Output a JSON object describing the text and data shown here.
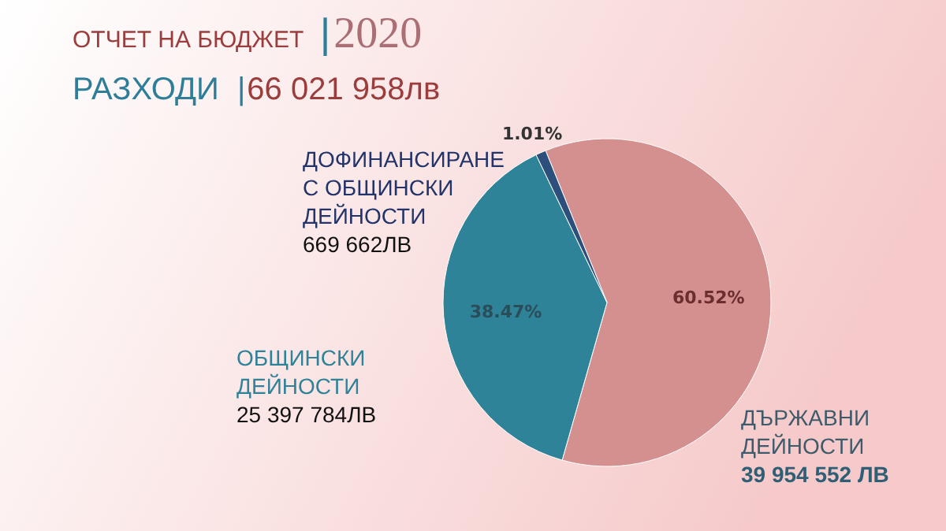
{
  "chart_data": {
    "type": "pie",
    "title": "ОТЧЕТ НА БЮДЖЕТ |2020",
    "subtitle": "РАЗХОДИ |66 021 958лв",
    "categories": [
      "ДЪРЖАВНИ ДЕЙНОСТИ",
      "ОБЩИНСКИ ДЕЙНОСТИ",
      "ДОФИНАНСИРАНЕ С ОБЩИНСКИ ДЕЙНОСТИ"
    ],
    "values": [
      60.52,
      38.47,
      1.01
    ],
    "colors": [
      "#d48f8f",
      "#2f8399",
      "#2d4f7c"
    ],
    "value_labels": [
      "60.52%",
      "38.47%",
      "1.01%"
    ],
    "annotations": [
      "39 954 552 ЛВ",
      "25 397 784ЛВ",
      "669 662ЛВ"
    ]
  }
}
